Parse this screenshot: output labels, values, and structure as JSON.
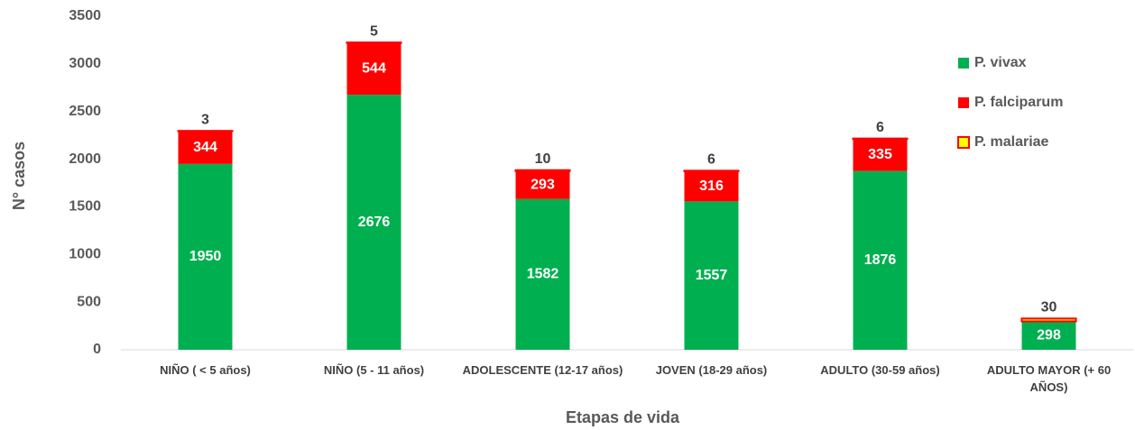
{
  "chart_data": {
    "type": "stacked_bar",
    "x_label": "Etapas de vida",
    "y_label": "N° casos",
    "categories": [
      "NIÑO ( < 5 años)",
      "NIÑO (5 - 11 años)",
      "ADOLESCENTE (12-17 años)",
      "JOVEN (18-29 años)",
      "ADULTO (30-59 años)",
      "ADULTO MAYOR (+ 60 AÑOS)"
    ],
    "series": [
      {
        "name": "P. vivax",
        "color": "#00b050",
        "label_color": "#ffffff",
        "values": [
          1950,
          2676,
          1582,
          1557,
          1876,
          298
        ]
      },
      {
        "name": "P. falciparum",
        "color": "#ff0000",
        "label_color": "#ffffff",
        "values": [
          344,
          544,
          293,
          316,
          335,
          null
        ]
      },
      {
        "name": "P. malariae",
        "color": "#ffff00",
        "border_color": "#ff0000",
        "label_color": "#000000",
        "values": [
          3,
          5,
          10,
          6,
          6,
          30
        ]
      }
    ],
    "ylim": [
      0,
      3500
    ],
    "yticks": [
      0,
      500,
      1000,
      1500,
      2000,
      2500,
      3000,
      3500
    ],
    "grid": false,
    "legend": "right"
  }
}
